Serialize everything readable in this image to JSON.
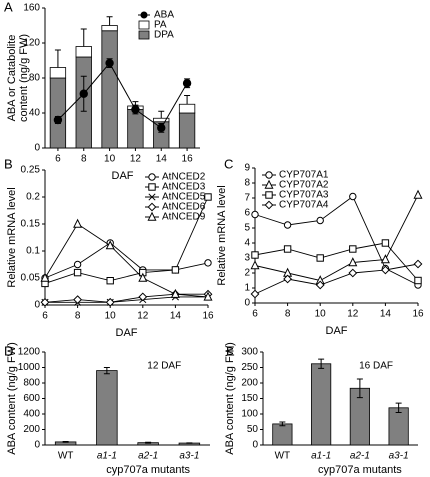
{
  "chart_data": [
    {
      "type": "bar_line",
      "panel": "A",
      "categories": [
        "6",
        "8",
        "10",
        "12",
        "14",
        "16"
      ],
      "xlabel": "DAF",
      "ylabel": [
        "ABA or Catabolite",
        "content (ng/g FW)"
      ],
      "ylim": [
        0,
        160
      ],
      "yticks": [
        0,
        40,
        80,
        120,
        160
      ],
      "legend": "upper right",
      "series": [
        {
          "name": "ABA",
          "mark": "line",
          "color": "#000000",
          "values": [
            32,
            62,
            97,
            44,
            23,
            74
          ],
          "errors": [
            4,
            20,
            5,
            5,
            5,
            5
          ]
        },
        {
          "name": "PA",
          "mark": "bar",
          "color": "#ffffff",
          "values": [
            12,
            12,
            6,
            4,
            4,
            10
          ],
          "errors": [
            20,
            20,
            10,
            5,
            8,
            10
          ]
        },
        {
          "name": "DPA",
          "mark": "bar",
          "color": "#808080",
          "values": [
            80,
            104,
            134,
            44,
            30,
            40
          ]
        }
      ]
    },
    {
      "type": "line",
      "panel": "B",
      "xlabel": "DAF",
      "ylabel": "Relative mRNA level",
      "xlim": [
        6,
        16
      ],
      "xticks": [
        6,
        8,
        10,
        12,
        14,
        16
      ],
      "ylim": [
        0,
        0.25
      ],
      "yticks": [
        0,
        0.05,
        0.1,
        0.15,
        0.2,
        0.25
      ],
      "legend": "upper right",
      "series": [
        {
          "name": "AtNCED2",
          "marker": "circle",
          "color": "#000000",
          "x": [
            6,
            8,
            10,
            12,
            14,
            16
          ],
          "values": [
            0.05,
            0.075,
            0.115,
            0.065,
            0.065,
            0.078
          ]
        },
        {
          "name": "AtNCED3",
          "marker": "square",
          "color": "#000000",
          "x": [
            6,
            8,
            10,
            12,
            14,
            16
          ],
          "values": [
            0.04,
            0.06,
            0.045,
            0.06,
            0.065,
            0.2
          ]
        },
        {
          "name": "AtNCED5",
          "marker": "x",
          "color": "#000000",
          "x": [
            6,
            8,
            10,
            12,
            14,
            16
          ],
          "values": [
            0.005,
            0.005,
            0.005,
            0.01,
            0.015,
            0.015
          ]
        },
        {
          "name": "AtNCED6",
          "marker": "diamond",
          "color": "#000000",
          "x": [
            6,
            8,
            10,
            12,
            14,
            16
          ],
          "values": [
            0.005,
            0.01,
            0.005,
            0.015,
            0.02,
            0.02
          ]
        },
        {
          "name": "AtNCED9",
          "marker": "triangle",
          "color": "#000000",
          "x": [
            6,
            8,
            10,
            12,
            14,
            16
          ],
          "values": [
            0.05,
            0.15,
            0.11,
            0.05,
            0.02,
            0.015
          ]
        }
      ]
    },
    {
      "type": "line",
      "panel": "C",
      "xlabel": "DAF",
      "ylabel": "Relative mRNA level",
      "xlim": [
        6,
        16
      ],
      "xticks": [
        6,
        8,
        10,
        12,
        14,
        16
      ],
      "ylim": [
        0,
        9
      ],
      "yticks": [
        0,
        1,
        2,
        3,
        4,
        5,
        6,
        7,
        8,
        9
      ],
      "legend": "upper left",
      "series": [
        {
          "name": "CYP707A1",
          "marker": "circle",
          "color": "#000000",
          "x": [
            6,
            8,
            10,
            12,
            14,
            16
          ],
          "values": [
            5.9,
            5.2,
            5.5,
            7.1,
            2.3,
            1.2
          ]
        },
        {
          "name": "CYP707A2",
          "marker": "triangle",
          "color": "#000000",
          "x": [
            6,
            8,
            10,
            12,
            14,
            16
          ],
          "values": [
            2.5,
            2.0,
            1.5,
            2.7,
            2.9,
            7.2
          ]
        },
        {
          "name": "CYP707A3",
          "marker": "square",
          "color": "#000000",
          "x": [
            6,
            8,
            10,
            12,
            14,
            16
          ],
          "values": [
            3.2,
            3.6,
            3.0,
            3.6,
            4.0,
            1.5
          ]
        },
        {
          "name": "CYP707A4",
          "marker": "diamond",
          "color": "#000000",
          "x": [
            6,
            8,
            10,
            12,
            14,
            16
          ],
          "values": [
            0.6,
            1.6,
            1.2,
            2.0,
            2.2,
            2.6
          ]
        }
      ]
    },
    {
      "type": "bar",
      "panel": "D",
      "annotation": "12 DAF",
      "ylabel": "ABA content (ng/g FW)",
      "categories": [
        "WT",
        "a1-1",
        "a2-1",
        "a3-1"
      ],
      "group_label": "cyp707a mutants",
      "ylim": [
        0,
        1200
      ],
      "yticks": [
        0,
        200,
        400,
        600,
        800,
        1000,
        1200
      ],
      "color": "#808080",
      "values": [
        40,
        960,
        30,
        25
      ],
      "errors": [
        5,
        40,
        5,
        3
      ]
    },
    {
      "type": "bar",
      "panel": "E",
      "annotation": "16 DAF",
      "ylabel": "ABA content (ng/g FW)",
      "categories": [
        "WT",
        "a1-1",
        "a2-1",
        "a3-1"
      ],
      "group_label": "cyp707a mutants",
      "ylim": [
        0,
        300
      ],
      "yticks": [
        0,
        50,
        100,
        150,
        200,
        250,
        300
      ],
      "color": "#808080",
      "values": [
        68,
        262,
        183,
        120
      ],
      "errors": [
        6,
        15,
        30,
        15
      ]
    }
  ]
}
